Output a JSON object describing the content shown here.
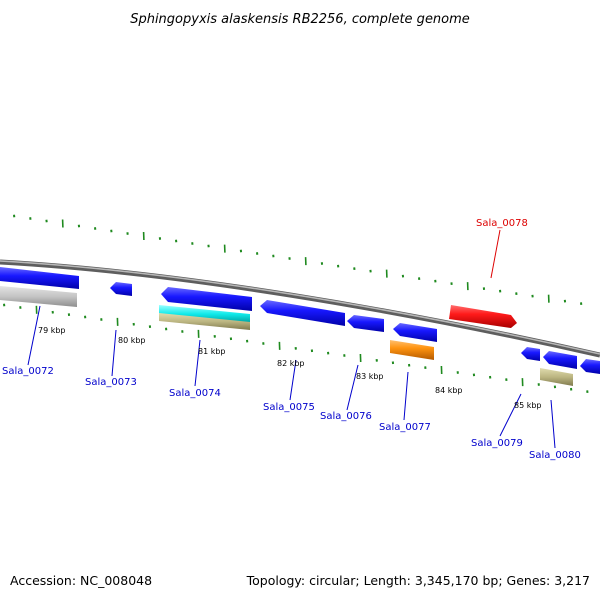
{
  "title": "Sphingopyxis alaskensis RB2256, complete genome",
  "footer": {
    "accession": "Accession: NC_008048",
    "summary": "Topology: circular; Length: 3,345,170 bp; Genes: 3,217"
  },
  "colors": {
    "backbone": "#8a8a8a",
    "tick": "#1f8a1f",
    "gene_blue": "#0000ee",
    "gene_red": "#ee0000",
    "gene_orange": "#ff8800",
    "gene_grey": "#bdbdbd",
    "gene_cyan": "#00e8e8",
    "gene_tan": "#b3ad7a",
    "label_blue": "#0000cc",
    "label_red": "#dd0000"
  },
  "kbp_labels": [
    "79 kbp",
    "80 kbp",
    "81 kbp",
    "82 kbp",
    "83 kbp",
    "84 kbp",
    "85 kbp"
  ],
  "gene_labels": [
    {
      "text": "Sala_0072",
      "color": "blue"
    },
    {
      "text": "Sala_0073",
      "color": "blue"
    },
    {
      "text": "Sala_0074",
      "color": "blue"
    },
    {
      "text": "Sala_0075",
      "color": "blue"
    },
    {
      "text": "Sala_0076",
      "color": "blue"
    },
    {
      "text": "Sala_0077",
      "color": "blue"
    },
    {
      "text": "Sala_0078",
      "color": "red"
    },
    {
      "text": "Sala_0079",
      "color": "blue"
    },
    {
      "text": "Sala_0080",
      "color": "blue"
    }
  ]
}
